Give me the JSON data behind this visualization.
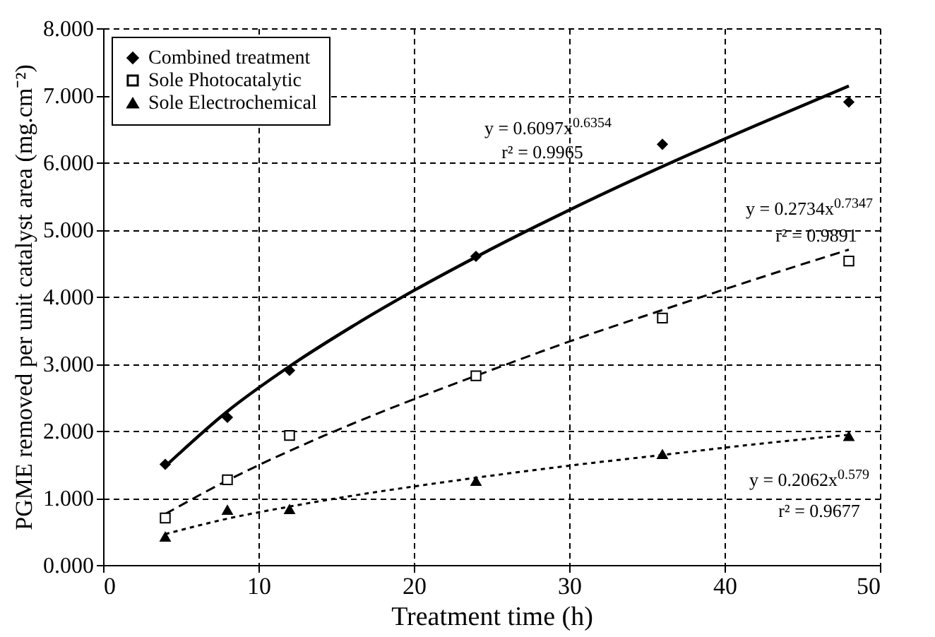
{
  "chart_data": {
    "type": "scatter",
    "xlabel": "Treatment time (h)",
    "ylabel": "PGME removed per unit catalyst area (mg.cm⁻²)",
    "xlim": [
      0,
      50
    ],
    "xticks": [
      0,
      10,
      20,
      30,
      40,
      50
    ],
    "ylim": [
      0,
      8
    ],
    "yticks": [
      {
        "value": 0,
        "label": "0.000"
      },
      {
        "value": 1,
        "label": "1.000"
      },
      {
        "value": 2,
        "label": "2.000"
      },
      {
        "value": 3,
        "label": "3.000"
      },
      {
        "value": 4,
        "label": "4.000"
      },
      {
        "value": 5,
        "label": "5.000"
      },
      {
        "value": 6,
        "label": "6.000"
      },
      {
        "value": 7,
        "label": "7.000"
      },
      {
        "value": 8,
        "label": "8.000"
      }
    ],
    "grid": true,
    "legend": "top left",
    "series": [
      {
        "name": "Combined treatment",
        "marker": "diamond",
        "color": "#000000",
        "x": [
          4,
          8,
          12,
          24,
          36,
          48
        ],
        "values": [
          1.5,
          2.2,
          2.9,
          4.6,
          6.27,
          6.9
        ]
      },
      {
        "name": "Sole Photocatalytic",
        "marker": "square",
        "color": "#000000",
        "x": [
          4,
          8,
          12,
          24,
          36,
          48
        ],
        "values": [
          0.7,
          1.27,
          1.93,
          2.82,
          3.68,
          4.53
        ]
      },
      {
        "name": "Sole Electrochemical",
        "marker": "triangle",
        "color": "#000000",
        "x": [
          4,
          8,
          12,
          24,
          36,
          48
        ],
        "values": [
          0.42,
          0.82,
          0.83,
          1.25,
          1.65,
          1.92
        ]
      },
      {
        "type": "line",
        "line_style": "solid",
        "color": "#000000",
        "x": [
          4,
          8,
          12,
          16,
          20,
          24,
          30,
          36,
          42,
          48
        ],
        "values": [
          1.47,
          2.29,
          2.96,
          3.55,
          4.09,
          4.59,
          5.29,
          5.94,
          6.55,
          7.14
        ]
      },
      {
        "type": "line",
        "line_style": "dashed",
        "color": "#000000",
        "x": [
          4,
          8,
          12,
          16,
          20,
          24,
          30,
          36,
          42,
          48
        ],
        "values": [
          0.76,
          1.26,
          1.7,
          2.1,
          2.47,
          2.82,
          3.33,
          3.8,
          4.26,
          4.7
        ]
      },
      {
        "type": "line",
        "line_style": "dotted",
        "color": "#000000",
        "x": [
          4,
          8,
          12,
          16,
          20,
          24,
          30,
          36,
          42,
          48
        ],
        "values": [
          0.46,
          0.69,
          0.87,
          1.03,
          1.17,
          1.3,
          1.48,
          1.64,
          1.8,
          1.94
        ]
      }
    ],
    "annotations": [
      "y = 0.6097x$^{0.6354}$",
      "r² = 0.9965",
      "y = 0.2734x$^{0.7347}$",
      "r² = 0.9891",
      "y = 0.2062x$^{0.579}$",
      "r² = 0.9677"
    ]
  }
}
